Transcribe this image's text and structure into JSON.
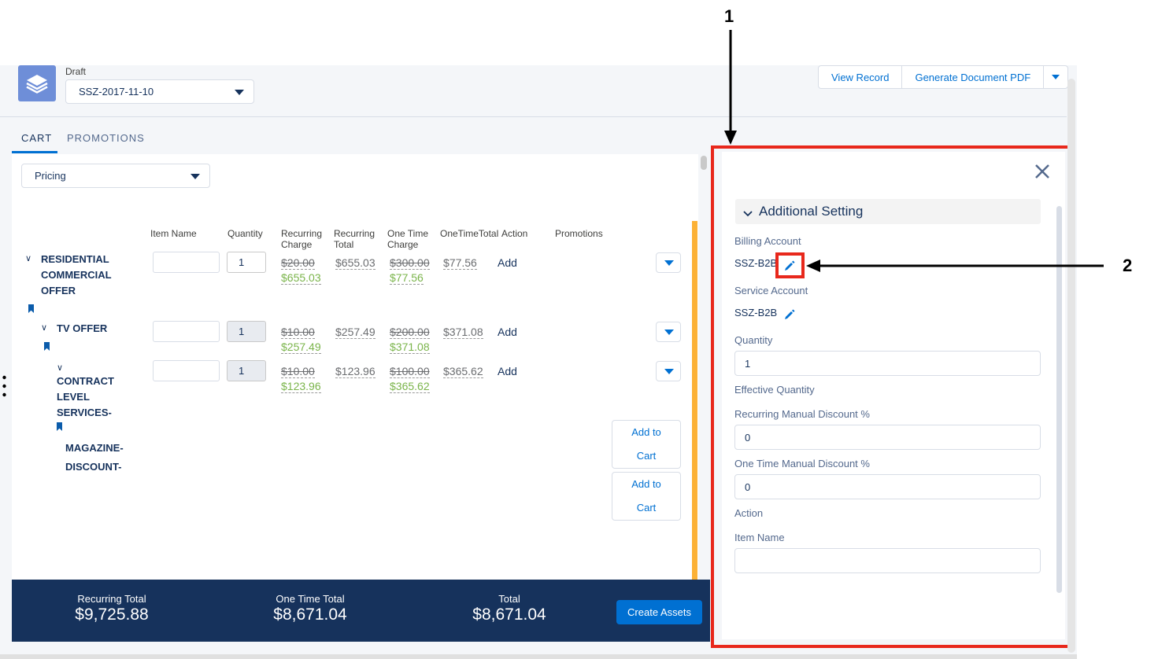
{
  "header": {
    "status_label": "Draft",
    "quote_select_value": "SSZ-2017-11-10",
    "buttons": {
      "view_record": "View Record",
      "generate_pdf": "Generate Document PDF"
    }
  },
  "tabs": [
    "CART",
    "PROMOTIONS"
  ],
  "cart": {
    "filter_select_value": "Pricing",
    "columns": [
      "Item Name",
      "Quantity",
      "Recurring\nCharge",
      "Recurring\nTotal",
      "One Time\nCharge",
      "OneTimeTotal",
      "Action",
      "Promotions"
    ],
    "col_recurring_charge": [
      "Recurring",
      "Charge"
    ],
    "col_recurring_total": [
      "Recurring",
      "Total"
    ],
    "col_one_time_charge": [
      "One Time",
      "Charge"
    ],
    "rows": [
      {
        "name_lines": [
          "RESIDENTIAL",
          "COMMERCIAL",
          "OFFER"
        ],
        "quantity": "1",
        "recurring_charge_old": "$20.00",
        "recurring_charge_new": "$655.03",
        "recurring_total": "$655.03",
        "one_time_charge_old": "$300.00",
        "one_time_charge_new": "$77.56",
        "one_time_total": "$77.56",
        "action": "Add"
      },
      {
        "name_lines": [
          "TV OFFER"
        ],
        "quantity": "1",
        "recurring_charge_old": "$10.00",
        "recurring_charge_new": "$257.49",
        "recurring_total": "$257.49",
        "one_time_charge_old": "$200.00",
        "one_time_charge_new": "$371.08",
        "one_time_total": "$371.08",
        "action": "Add"
      },
      {
        "name_lines": [
          "CONTRACT",
          "LEVEL",
          "SERVICES-"
        ],
        "quantity": "1",
        "recurring_charge_old": "$10.00",
        "recurring_charge_new": "$123.96",
        "recurring_total": "$123.96",
        "one_time_charge_old": "$100.00",
        "one_time_charge_new": "$365.62",
        "one_time_total": "$365.62",
        "action": "Add"
      }
    ],
    "sub_item_lines": [
      "MAGAZINE-",
      "DISCOUNT-"
    ],
    "add_to_cart_lines": [
      "Add to",
      "Cart"
    ]
  },
  "footer": {
    "recurring_total_label": "Recurring Total",
    "recurring_total_value": "$9,725.88",
    "one_time_total_label": "One Time Total",
    "one_time_total_value": "$8,671.04",
    "total_label": "Total",
    "total_value": "$8,671.04",
    "create_assets": "Create Assets"
  },
  "side_panel": {
    "section_title": "Additional Setting",
    "billing_account_label": "Billing Account",
    "billing_account_value": "SSZ-B2B",
    "service_account_label": "Service Account",
    "service_account_value": "SSZ-B2B",
    "quantity_label": "Quantity",
    "quantity_value": "1",
    "effective_quantity_label": "Effective Quantity",
    "recurring_discount_label": "Recurring Manual Discount %",
    "recurring_discount_value": "0",
    "one_time_discount_label": "One Time Manual Discount %",
    "one_time_discount_value": "0",
    "action_label": "Action",
    "item_name_label": "Item Name",
    "item_name_value": ""
  },
  "annotations": {
    "callout_1": "1",
    "callout_2": "2"
  },
  "colors": {
    "brand_blue": "#0070d2",
    "footer_navy": "#16325c",
    "highlight_red": "#e8281c",
    "discount_green": "#7ab44a",
    "scroll_orange": "#fcb135"
  }
}
